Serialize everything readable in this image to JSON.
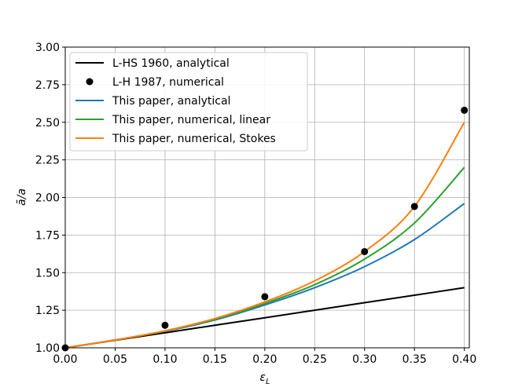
{
  "chart_data": {
    "type": "line",
    "title": "",
    "xlabel": "ε",
    "xlabel_sub": "L",
    "ylabel": "ā/a",
    "xlim": [
      0.0,
      0.405
    ],
    "ylim": [
      1.0,
      3.0
    ],
    "grid": true,
    "legend_position": "upper-left",
    "x_ticks": [
      0.0,
      0.05,
      0.1,
      0.15,
      0.2,
      0.25,
      0.3,
      0.35,
      0.4
    ],
    "x_tick_labels": [
      "0.00",
      "0.05",
      "0.10",
      "0.15",
      "0.20",
      "0.25",
      "0.30",
      "0.35",
      "0.40"
    ],
    "y_ticks": [
      1.0,
      1.25,
      1.5,
      1.75,
      2.0,
      2.25,
      2.5,
      2.75,
      3.0
    ],
    "y_tick_labels": [
      "1.00",
      "1.25",
      "1.50",
      "1.75",
      "2.00",
      "2.25",
      "2.50",
      "2.75",
      "3.00"
    ],
    "x": [
      0.0,
      0.05,
      0.1,
      0.15,
      0.2,
      0.25,
      0.3,
      0.35,
      0.4
    ],
    "series": [
      {
        "name": "L-HS 1960, analytical",
        "style": "line",
        "color": "#000000",
        "values": [
          1.0,
          1.05,
          1.1,
          1.15,
          1.2,
          1.25,
          1.3,
          1.35,
          1.4
        ]
      },
      {
        "name": "L-H 1987, numerical",
        "style": "points",
        "color": "#000000",
        "x": [
          0.0,
          0.1,
          0.2,
          0.3,
          0.35,
          0.4
        ],
        "values": [
          1.0,
          1.15,
          1.34,
          1.64,
          1.94,
          2.58
        ]
      },
      {
        "name": "This paper, analytical",
        "style": "line",
        "color": "#1f77b4",
        "values": [
          1.0,
          1.052,
          1.11,
          1.185,
          1.285,
          1.4,
          1.54,
          1.72,
          1.96
        ]
      },
      {
        "name": "This paper, numerical, linear",
        "style": "line",
        "color": "#2ca02c",
        "values": [
          1.0,
          1.052,
          1.112,
          1.19,
          1.295,
          1.42,
          1.59,
          1.83,
          2.2
        ]
      },
      {
        "name": "This paper, numerical, Stokes",
        "style": "line",
        "color": "#ff7f0e",
        "values": [
          1.0,
          1.052,
          1.113,
          1.195,
          1.305,
          1.445,
          1.64,
          1.94,
          2.5
        ]
      }
    ]
  }
}
